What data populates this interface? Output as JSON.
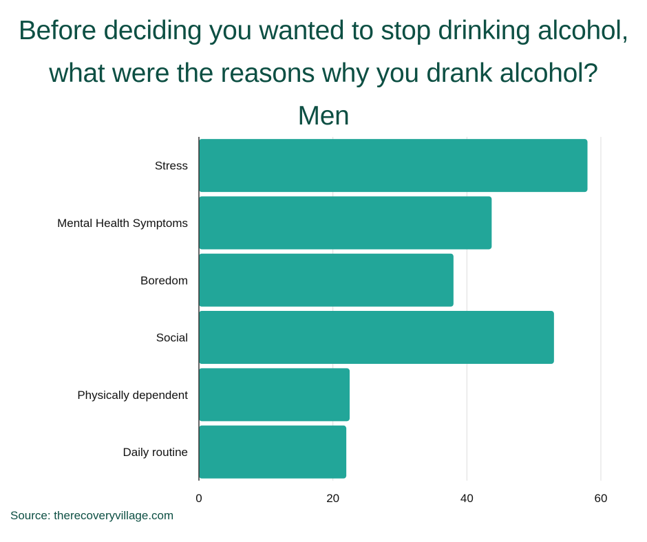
{
  "chart_data": {
    "type": "bar",
    "orientation": "horizontal",
    "title_lines": [
      "Before deciding you wanted to stop drinking alcohol,",
      "what were the reasons why you drank alcohol?",
      "Men"
    ],
    "categories": [
      "Stress",
      "Mental Health Symptoms",
      "Boredom",
      "Social",
      "Physically dependent",
      "Daily routine"
    ],
    "values": [
      58,
      43.7,
      38,
      53,
      22.5,
      22
    ],
    "xlim": [
      0,
      60
    ],
    "xticks": [
      0,
      20,
      40,
      60
    ],
    "grid": true,
    "bar_color": "#22a699",
    "grid_color": "#dcdcdc",
    "title_color": "#0d4f43"
  },
  "source": "Source: therecoveryvillage.com"
}
